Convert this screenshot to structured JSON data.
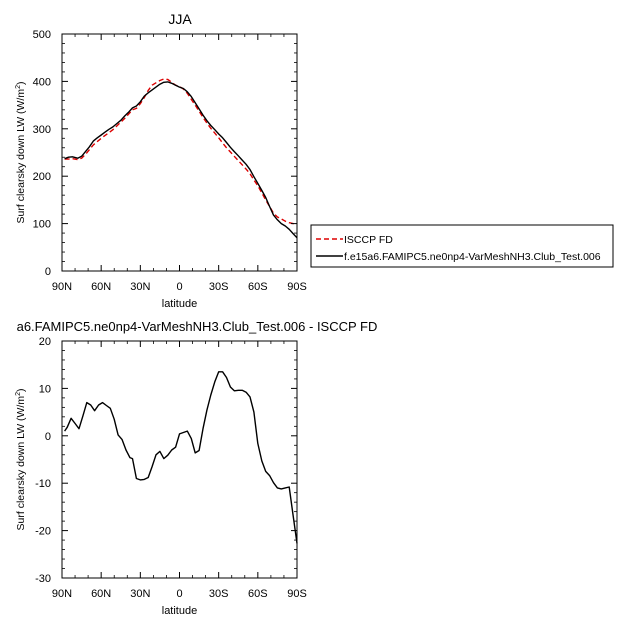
{
  "chart_data": [
    {
      "type": "line",
      "title": "JJA",
      "xlabel": "latitude",
      "ylabel": "Surf clearsky down LW (W/m",
      "ylabel_sup": "2",
      "ylabel_close": ")",
      "xlim": [
        90,
        -90
      ],
      "ylim": [
        0,
        500
      ],
      "xtick_values": [
        90,
        60,
        30,
        0,
        -30,
        -60,
        -90
      ],
      "xtick_labels": [
        "90N",
        "60N",
        "30N",
        "0",
        "30S",
        "60S",
        "90S"
      ],
      "ytick_values": [
        0,
        100,
        200,
        300,
        400,
        500
      ],
      "ytick_labels": [
        "0",
        "100",
        "200",
        "300",
        "400",
        "500"
      ],
      "legend_position": "outside-right-bottom",
      "series": [
        {
          "name": "ISCCP FD",
          "color": "#dd0000",
          "style": "dashed",
          "x": [
            88,
            85,
            82,
            78,
            75,
            72,
            69,
            66,
            63,
            60,
            57,
            54,
            51,
            48,
            45,
            42,
            39,
            36,
            33,
            30,
            27,
            24,
            21,
            18,
            15,
            12,
            9,
            6,
            3,
            0,
            -3,
            -6,
            -9,
            -12,
            -15,
            -18,
            -21,
            -24,
            -27,
            -30,
            -33,
            -36,
            -39,
            -42,
            -45,
            -48,
            -51,
            -54,
            -57,
            -60,
            -63,
            -66,
            -69,
            -72,
            -75,
            -78,
            -81,
            -84,
            -87,
            -90
          ],
          "y": [
            236,
            236,
            237,
            235,
            238,
            246,
            256,
            266,
            273,
            280,
            286,
            292,
            298,
            306,
            314,
            322,
            331,
            340,
            343,
            353,
            366,
            381,
            392,
            397,
            402,
            405,
            404,
            398,
            392,
            389,
            384,
            375,
            362,
            350,
            337,
            324,
            312,
            301,
            291,
            281,
            270,
            260,
            251,
            242,
            233,
            224,
            215,
            205,
            192,
            180,
            165,
            150,
            136,
            122,
            114,
            110,
            105,
            102,
            100,
            98
          ]
        },
        {
          "name": "f.e15a6.FAMIPC5.ne0np4-VarMeshNH3.Club_Test.006",
          "color": "#000000",
          "style": "solid",
          "x": [
            88,
            85,
            82,
            78,
            75,
            72,
            69,
            66,
            63,
            60,
            57,
            54,
            51,
            48,
            45,
            42,
            39,
            36,
            33,
            30,
            27,
            24,
            21,
            18,
            15,
            12,
            9,
            6,
            3,
            0,
            -3,
            -6,
            -9,
            -12,
            -15,
            -18,
            -21,
            -24,
            -27,
            -30,
            -33,
            -36,
            -39,
            -42,
            -45,
            -48,
            -51,
            -54,
            -57,
            -60,
            -63,
            -66,
            -69,
            -72,
            -75,
            -78,
            -81,
            -84,
            -87,
            -90
          ],
          "y": [
            237,
            240,
            241,
            238,
            242,
            252,
            262,
            274,
            281,
            287,
            293,
            299,
            304,
            311,
            318,
            327,
            335,
            344,
            348,
            357,
            369,
            376,
            382,
            388,
            394,
            398,
            399,
            396,
            392,
            388,
            385,
            378,
            368,
            355,
            342,
            329,
            317,
            307,
            298,
            289,
            281,
            271,
            261,
            252,
            243,
            234,
            225,
            214,
            199,
            185,
            170,
            155,
            136,
            118,
            108,
            100,
            95,
            88,
            79,
            70
          ]
        }
      ]
    },
    {
      "type": "line",
      "title": "a6.FAMIPC5.ne0np4-VarMeshNH3.Club_Test.006 - ISCCP FD",
      "xlabel": "latitude",
      "ylabel": "Surf clearsky down LW (W/m",
      "ylabel_sup": "2",
      "ylabel_close": ")",
      "xlim": [
        90,
        -90
      ],
      "ylim": [
        -30,
        20
      ],
      "xtick_values": [
        90,
        60,
        30,
        0,
        -30,
        -60,
        -90
      ],
      "xtick_labels": [
        "90N",
        "60N",
        "30N",
        "0",
        "30S",
        "60S",
        "90S"
      ],
      "ytick_values": [
        -30,
        -20,
        -10,
        0,
        10,
        20
      ],
      "ytick_labels": [
        "-30",
        "-20",
        "-10",
        "0",
        "10",
        "20"
      ],
      "series": [
        {
          "color": "#000000",
          "style": "solid",
          "x": [
            88,
            86,
            83,
            80,
            77,
            74,
            71,
            68,
            65,
            62,
            59,
            56,
            53,
            50,
            47,
            44,
            41,
            38,
            36,
            33,
            30,
            27,
            24,
            21,
            18,
            15,
            12,
            9,
            6,
            3,
            0,
            -3,
            -6,
            -9,
            -12,
            -15,
            -18,
            -21,
            -24,
            -27,
            -30,
            -33,
            -36,
            -39,
            -42,
            -45,
            -48,
            -51,
            -54,
            -57,
            -60,
            -63,
            -66,
            -69,
            -72,
            -75,
            -78,
            -81,
            -84,
            -87,
            -90
          ],
          "y": [
            1.0,
            1.8,
            3.7,
            2.6,
            1.5,
            4.2,
            7.0,
            6.5,
            5.3,
            6.5,
            7.0,
            6.4,
            5.8,
            3.5,
            0.2,
            -0.8,
            -3.0,
            -4.6,
            -4.8,
            -9.0,
            -9.3,
            -9.2,
            -8.8,
            -6.5,
            -4.0,
            -3.3,
            -4.8,
            -4.1,
            -3.0,
            -2.4,
            0.4,
            0.7,
            1.0,
            -0.6,
            -3.6,
            -3.1,
            1.5,
            5.4,
            8.6,
            11.4,
            13.5,
            13.5,
            12.3,
            10.3,
            9.5,
            9.6,
            9.6,
            9.2,
            8.2,
            5.0,
            -1.6,
            -5.3,
            -7.5,
            -8.4,
            -9.9,
            -11.0,
            -11.2,
            -11.0,
            -10.8,
            -16.8,
            -22.7
          ]
        }
      ]
    }
  ]
}
